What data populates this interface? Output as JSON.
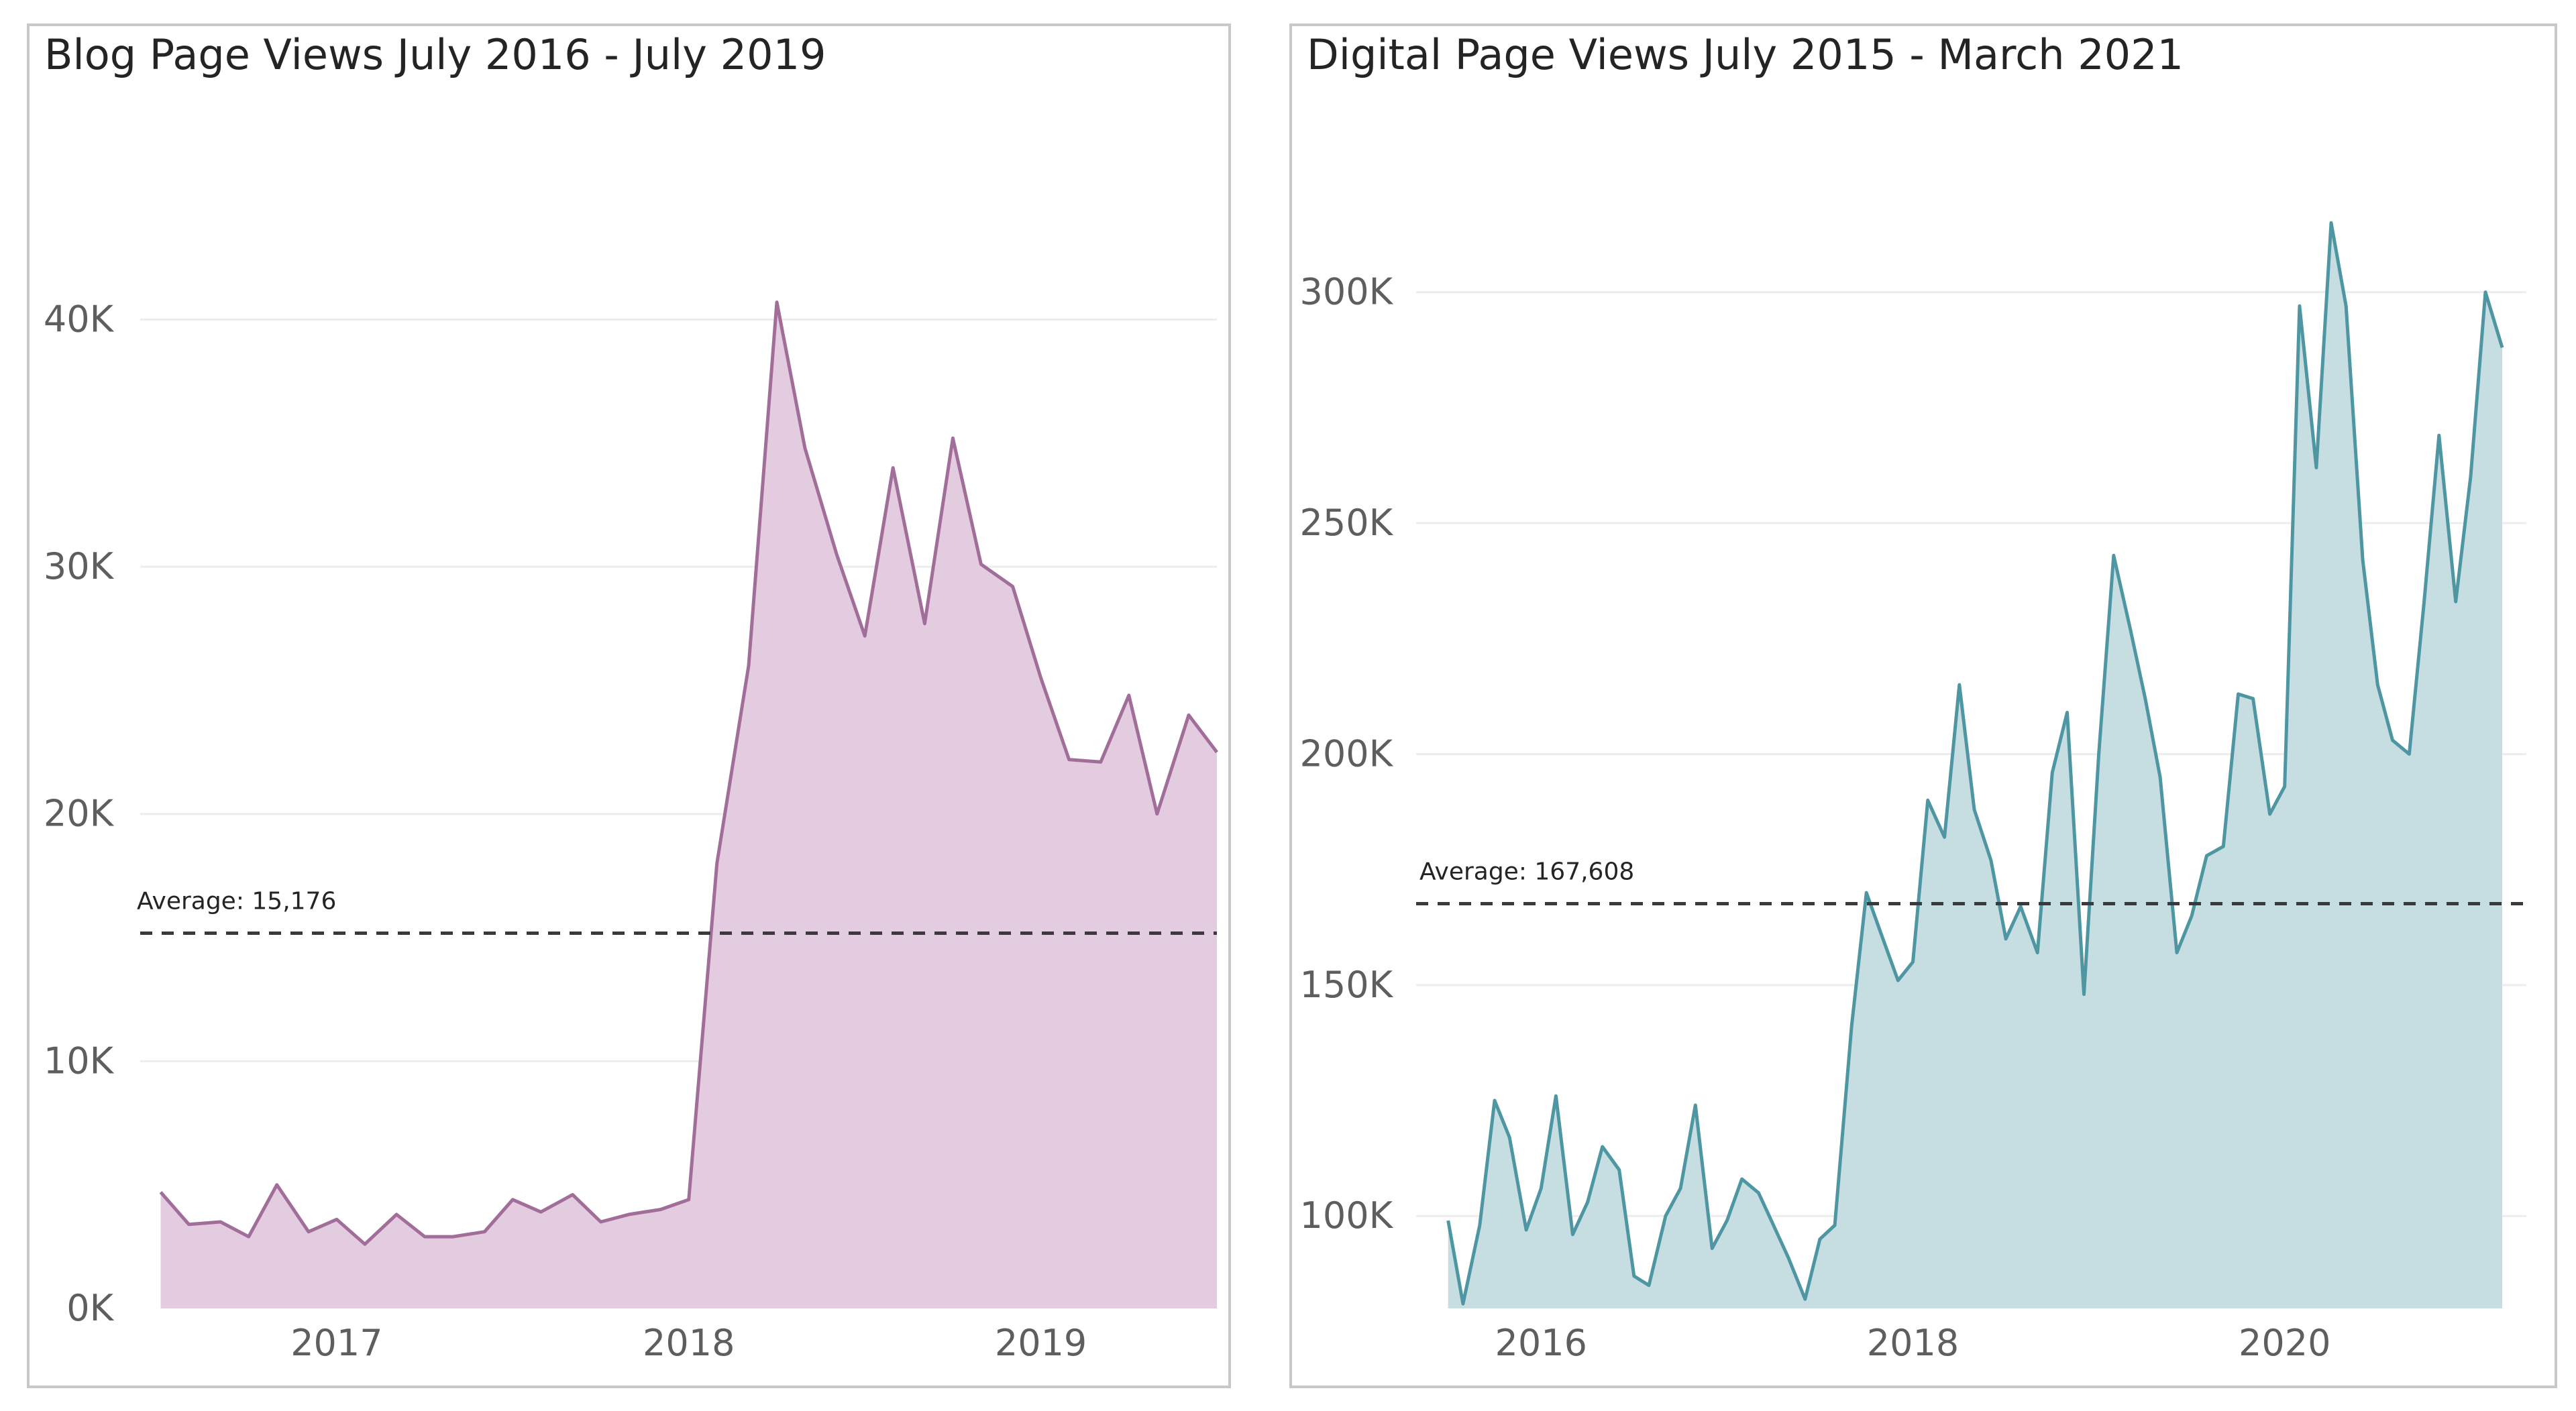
{
  "chart_data": [
    {
      "type": "area",
      "title": "Blog Page Views July 2016 - July 2019",
      "xlabel": "",
      "ylabel": "",
      "ylim": [
        0,
        44000
      ],
      "xlim": [
        2016.48,
        2019.5
      ],
      "color": "#a16e9a",
      "fill_color": "#e3cce0",
      "y_ticks": [
        0,
        10000,
        20000,
        30000,
        40000
      ],
      "y_tick_labels": [
        "0K",
        "10K",
        "20K",
        "30K",
        "40K"
      ],
      "x_ticks": [
        2017,
        2018,
        2019
      ],
      "x_tick_labels": [
        "2017",
        "2018",
        "2019"
      ],
      "average": {
        "value": 15176,
        "label": "Average: 15,176"
      },
      "x": [
        2016.5,
        2016.58,
        2016.67,
        2016.75,
        2016.83,
        2016.92,
        2017.0,
        2017.08,
        2017.17,
        2017.25,
        2017.33,
        2017.42,
        2017.5,
        2017.58,
        2017.67,
        2017.75,
        2017.83,
        2017.92,
        2018.0,
        2018.08,
        2018.17,
        2018.25,
        2018.33,
        2018.42,
        2018.5,
        2018.58,
        2018.67,
        2018.75,
        2018.83,
        2018.92,
        2019.0,
        2019.08,
        2019.17,
        2019.25,
        2019.33,
        2019.42,
        2019.5
      ],
      "values": [
        4700,
        3400,
        3500,
        2900,
        5000,
        3100,
        3600,
        2600,
        3800,
        2900,
        2900,
        3100,
        4400,
        3900,
        4600,
        3500,
        3800,
        4000,
        4400,
        18000,
        26000,
        40700,
        34800,
        30500,
        27200,
        34000,
        27700,
        35200,
        30100,
        29200,
        25500,
        22200,
        22100,
        24800,
        20000,
        24000,
        22500
      ]
    },
    {
      "type": "area",
      "title": "Digital Page Views July 2015 - March 2021",
      "xlabel": "",
      "ylabel": "",
      "ylim": [
        80000,
        330000
      ],
      "xlim": [
        2015.4,
        2021.3
      ],
      "color": "#4e96a2",
      "fill_color": "#c6dde1",
      "y_ticks": [
        100000,
        150000,
        200000,
        250000,
        300000
      ],
      "y_tick_labels": [
        "100K",
        "150K",
        "200K",
        "250K",
        "300K"
      ],
      "x_ticks": [
        2016,
        2018,
        2020
      ],
      "x_tick_labels": [
        "2016",
        "2018",
        "2020"
      ],
      "average": {
        "value": 167608,
        "label": "Average: 167,608"
      },
      "x": [
        2015.5,
        2015.58,
        2015.67,
        2015.75,
        2015.83,
        2015.92,
        2016.0,
        2016.08,
        2016.17,
        2016.25,
        2016.33,
        2016.42,
        2016.5,
        2016.58,
        2016.67,
        2016.75,
        2016.83,
        2016.92,
        2017.0,
        2017.08,
        2017.17,
        2017.25,
        2017.33,
        2017.42,
        2017.5,
        2017.58,
        2017.67,
        2017.75,
        2017.83,
        2017.92,
        2018.0,
        2018.08,
        2018.17,
        2018.25,
        2018.33,
        2018.42,
        2018.5,
        2018.58,
        2018.67,
        2018.75,
        2018.83,
        2018.92,
        2019.0,
        2019.08,
        2019.17,
        2019.25,
        2019.33,
        2019.42,
        2019.5,
        2019.58,
        2019.67,
        2019.75,
        2019.83,
        2019.92,
        2020.0,
        2020.08,
        2020.17,
        2020.25,
        2020.33,
        2020.42,
        2020.5,
        2020.58,
        2020.67,
        2020.75,
        2020.83,
        2020.92,
        2021.0,
        2021.08,
        2021.17
      ],
      "values": [
        99000,
        81000,
        98000,
        125000,
        117000,
        97000,
        106000,
        126000,
        96000,
        103000,
        115000,
        110000,
        87000,
        85000,
        100000,
        106000,
        124000,
        93000,
        99000,
        108000,
        105000,
        98000,
        91000,
        82000,
        95000,
        98000,
        141000,
        170000,
        161000,
        151000,
        155000,
        190000,
        182000,
        215000,
        188000,
        177000,
        160000,
        167000,
        157000,
        196000,
        209000,
        148000,
        200000,
        243000,
        227000,
        212000,
        195000,
        157000,
        165000,
        178000,
        180000,
        213000,
        212000,
        187000,
        193000,
        297000,
        262000,
        315000,
        297000,
        242000,
        215000,
        203000,
        200000,
        233000,
        269000,
        233000,
        260000,
        300000,
        288000
      ]
    }
  ]
}
